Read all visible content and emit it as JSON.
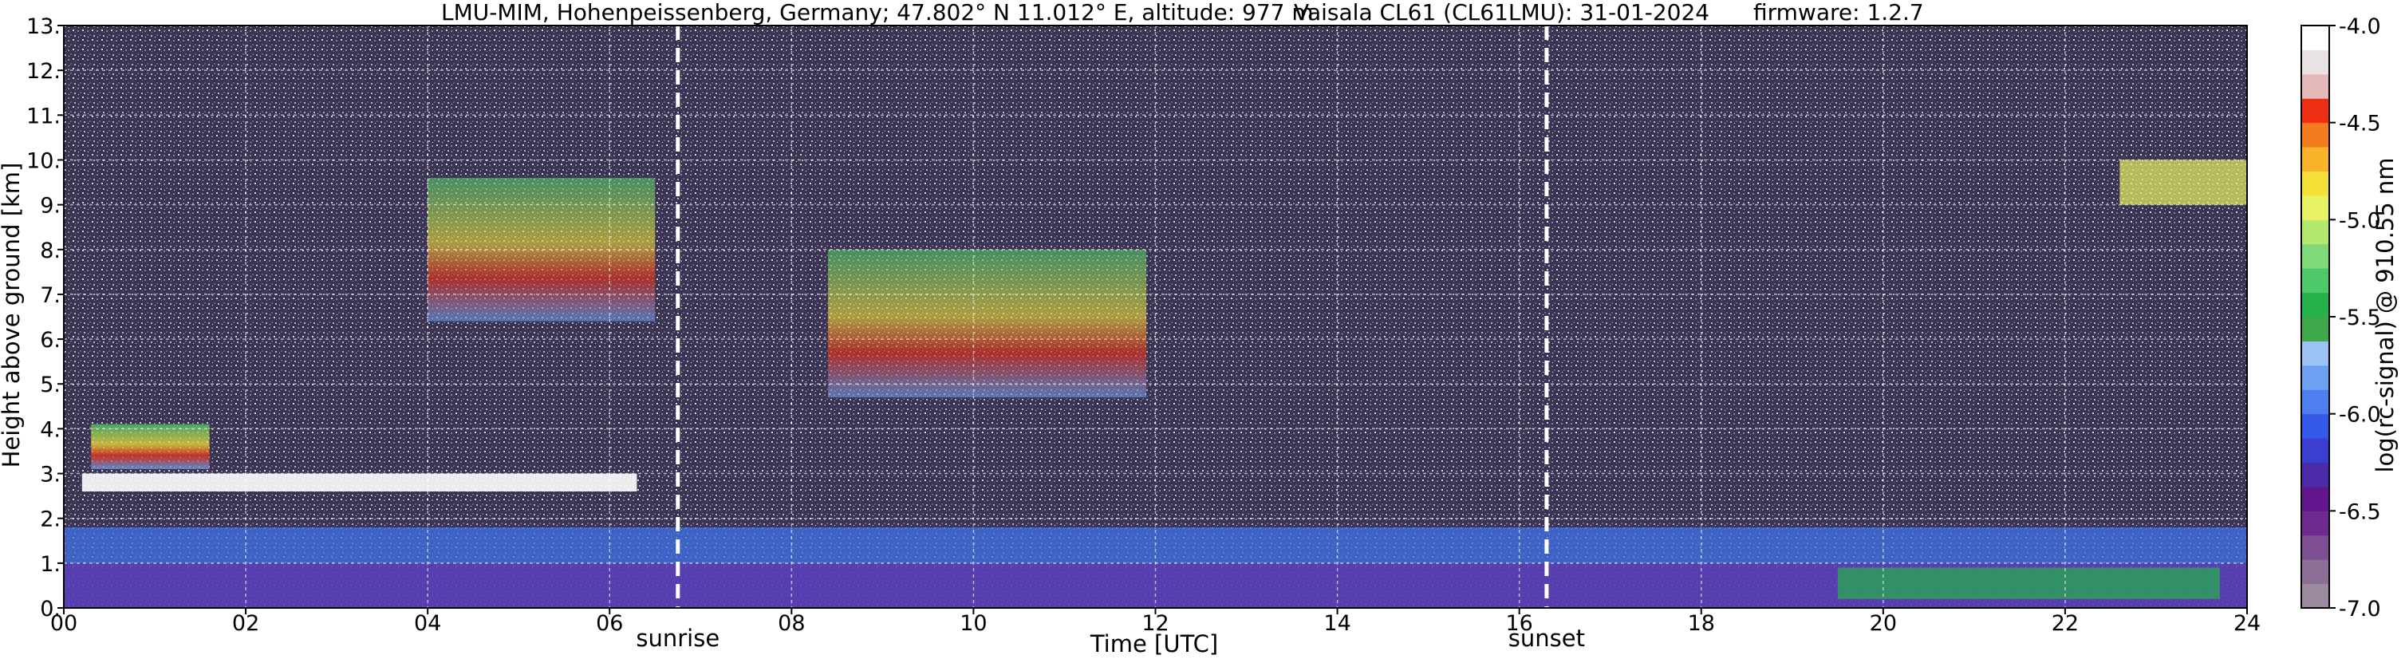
{
  "title": {
    "site": "LMU-MIM, Hohenpeissenberg, Germany; 47.802° N 11.012° E, altitude: 977 m",
    "instrument": "Vaisala CL61 (CL61LMU): 31-01-2024",
    "firmware": "firmware: 1.2.7"
  },
  "chart_data": {
    "type": "heatmap",
    "xlabel": "Time [UTC]",
    "ylabel": "Height above ground [km]",
    "xlim": [
      0,
      24
    ],
    "ylim": [
      0,
      13
    ],
    "x_ticks": [
      "00",
      "02",
      "04",
      "06",
      "08",
      "10",
      "12",
      "14",
      "16",
      "18",
      "20",
      "22",
      "24"
    ],
    "y_ticks": [
      "0.",
      "1.",
      "2.",
      "3.",
      "4.",
      "5.",
      "6.",
      "7.",
      "8.",
      "9.",
      "10.",
      "11.",
      "12.",
      "13."
    ],
    "grid": true,
    "colorbar": {
      "label": "log(rc-signal) @ 910.55 nm",
      "range": [
        -7.0,
        -4.0
      ],
      "ticks": [
        "-4.0",
        "-4.5",
        "-5.0",
        "-5.5",
        "-6.0",
        "-6.5",
        "-7.0"
      ],
      "colors": [
        "#9c8aa0",
        "#8b6f96",
        "#7d4f92",
        "#6e2a8f",
        "#62168e",
        "#4b2ba7",
        "#3a3fd0",
        "#3458e8",
        "#4f7ef0",
        "#6ea0f2",
        "#9cc2f4",
        "#3fa84b",
        "#25b24a",
        "#4ec96a",
        "#80d979",
        "#b5e86f",
        "#e8f264",
        "#f5e03a",
        "#f7b42a",
        "#f37d1e",
        "#ee2f14",
        "#e5b9b7",
        "#eae3e3",
        "#ffffff"
      ]
    },
    "events": [
      {
        "label": "sunrise",
        "time": 6.75
      },
      {
        "label": "sunset",
        "time": 16.3
      }
    ],
    "layers": [
      {
        "name": "boundary-layer-lower",
        "t_start": 0,
        "t_end": 24,
        "h_bottom": 0.0,
        "h_top": 1.0
      },
      {
        "name": "boundary-layer-upper",
        "t_start": 0,
        "t_end": 24,
        "h_bottom": 1.0,
        "h_top": 1.8
      },
      {
        "name": "low-cloud-morning",
        "t_start": 0.2,
        "t_end": 6.3,
        "h_bottom": 2.6,
        "h_top": 3.0
      },
      {
        "name": "cloud-early",
        "t_start": 0.3,
        "t_end": 1.6,
        "h_bottom": 3.1,
        "h_top": 4.1
      },
      {
        "name": "cirrus-morning",
        "t_start": 4.0,
        "t_end": 6.5,
        "h_bottom": 6.4,
        "h_top": 9.6
      },
      {
        "name": "cirrus-midday",
        "t_start": 8.4,
        "t_end": 11.9,
        "h_bottom": 4.7,
        "h_top": 8.0
      },
      {
        "name": "aerosol-afternoon",
        "t_start": 19.5,
        "t_end": 23.7,
        "h_bottom": 0.2,
        "h_top": 0.9
      },
      {
        "name": "cloud-late",
        "t_start": 22.6,
        "t_end": 24.0,
        "h_bottom": 9.0,
        "h_top": 10.0
      }
    ]
  }
}
